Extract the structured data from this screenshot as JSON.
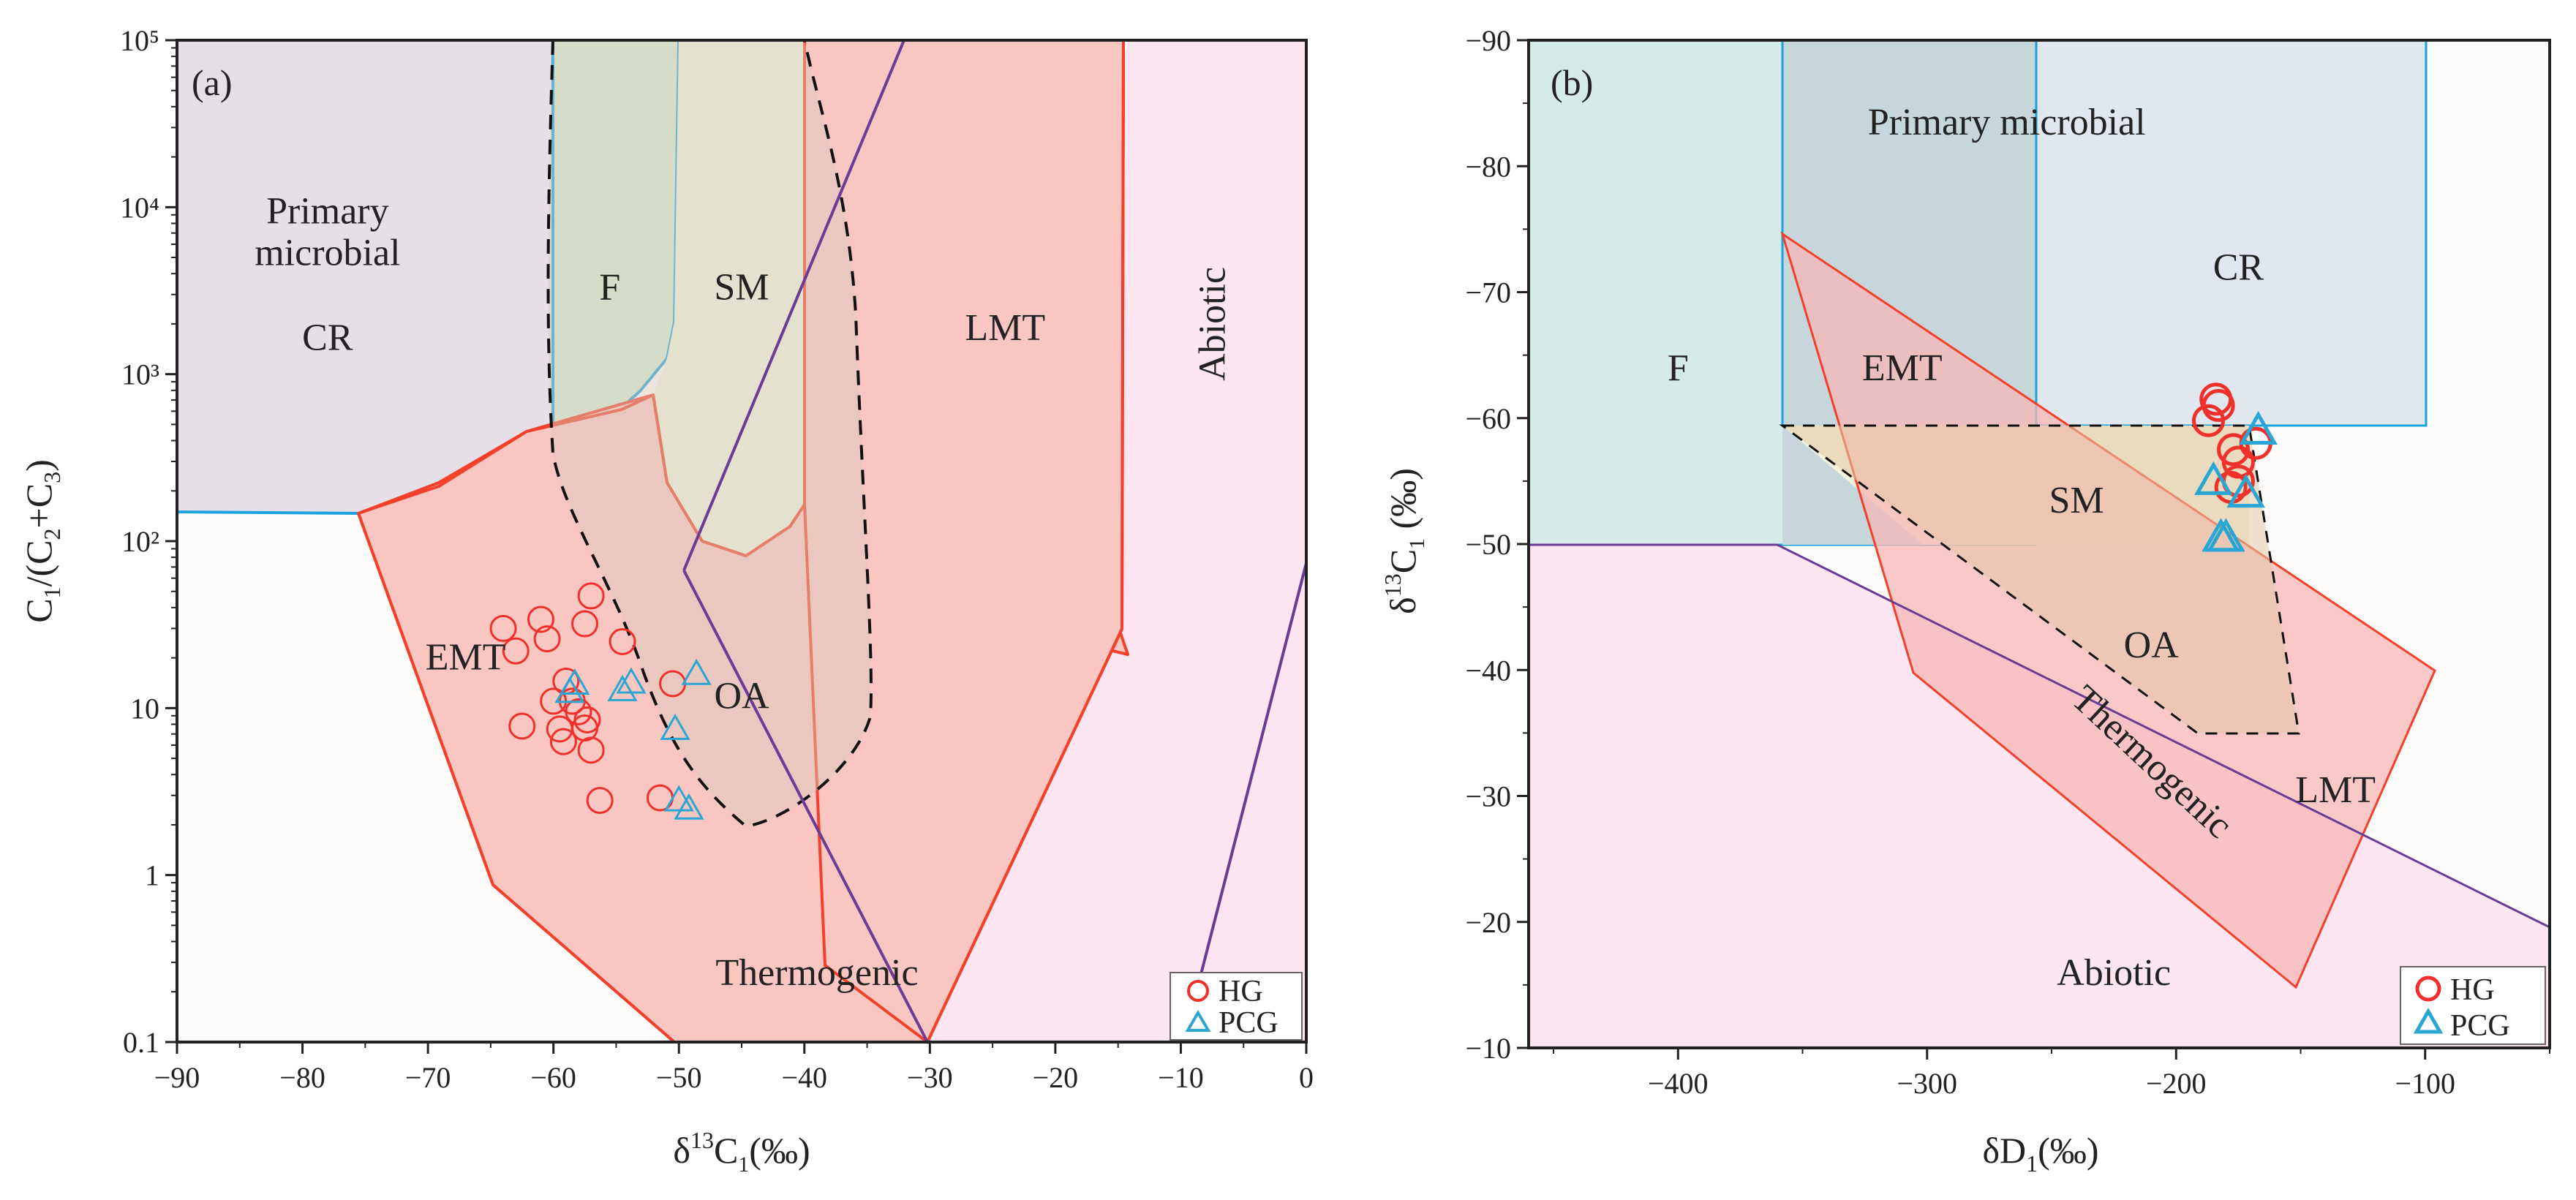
{
  "chart_data": [
    {
      "type": "scatter",
      "panel_label": "(a)",
      "xlabel": "δ13C1(‰)",
      "ylabel": "C1/(C2+C3)",
      "y_scale": "log",
      "xlim": [
        -90,
        0
      ],
      "ylim": [
        0.1,
        100000
      ],
      "x_ticks": [
        -90,
        -80,
        -70,
        -60,
        -50,
        -40,
        -30,
        -20,
        -10,
        0
      ],
      "y_ticks": [
        {
          "value": 0.1,
          "label": "0.1"
        },
        {
          "value": 1,
          "label": "1"
        },
        {
          "value": 10,
          "label": "10"
        },
        {
          "value": 100,
          "label": "10²"
        },
        {
          "value": 1000,
          "label": "10³"
        },
        {
          "value": 10000,
          "label": "10⁴"
        },
        {
          "value": 100000,
          "label": "10⁵"
        }
      ],
      "region_labels": [
        {
          "text": "Primary",
          "x": -78,
          "y": 8000
        },
        {
          "text": "microbial",
          "x": -78,
          "y": 4500
        },
        {
          "text": "CR",
          "x": -78,
          "y": 1400
        },
        {
          "text": "F",
          "x": -55.5,
          "y": 2800
        },
        {
          "text": "SM",
          "x": -45,
          "y": 2800
        },
        {
          "text": "LMT",
          "x": -24,
          "y": 1600
        },
        {
          "text": "EMT",
          "x": -67,
          "y": 17
        },
        {
          "text": "OA",
          "x": -45,
          "y": 10
        },
        {
          "text": "Thermogenic",
          "x": -39,
          "y": 0.22
        },
        {
          "text": "Abiotic",
          "x": -6.5,
          "y": 2000,
          "rotate": -90
        }
      ],
      "series": [
        {
          "name": "HG",
          "marker": "circle",
          "color": "#f0302a",
          "points": [
            [
              -64,
              30
            ],
            [
              -63,
              22
            ],
            [
              -61,
              34
            ],
            [
              -60.5,
              26
            ],
            [
              -57,
              47
            ],
            [
              -57.5,
              32
            ],
            [
              -59,
              14.5
            ],
            [
              -60,
              11
            ],
            [
              -58.5,
              11
            ],
            [
              -58,
              9.5
            ],
            [
              -57.3,
              8.5
            ],
            [
              -57.5,
              7.6
            ],
            [
              -59.5,
              7.5
            ],
            [
              -62.5,
              7.8
            ],
            [
              -59.2,
              6.3
            ],
            [
              -57,
              5.6
            ],
            [
              -54.5,
              25
            ],
            [
              -50.5,
              14
            ],
            [
              -56.3,
              2.8
            ],
            [
              -51.5,
              2.9
            ]
          ]
        },
        {
          "name": "PCG",
          "marker": "triangle",
          "color": "#2aa6d4",
          "points": [
            [
              -58.3,
              14
            ],
            [
              -58.7,
              12.5
            ],
            [
              -54.5,
              12.8
            ],
            [
              -53.8,
              14.2
            ],
            [
              -48.6,
              16
            ],
            [
              -50.3,
              7.5
            ],
            [
              -50,
              2.8
            ],
            [
              -49.2,
              2.5
            ]
          ]
        }
      ],
      "legend": {
        "position": "bottom-right",
        "entries": [
          "HG",
          "PCG"
        ]
      }
    },
    {
      "type": "scatter",
      "panel_label": "(b)",
      "xlabel": "δD1(‰)",
      "ylabel": "δ13C1 (‰)",
      "xlim": [
        -460,
        -50
      ],
      "ylim": [
        -90,
        -10
      ],
      "y_reversed": true,
      "x_ticks": [
        -400,
        -300,
        -200,
        -100
      ],
      "y_ticks": [
        -90,
        -80,
        -70,
        -60,
        -50,
        -40,
        -30,
        -20,
        -10
      ],
      "region_labels": [
        {
          "text": "Primary microbial",
          "x": -268,
          "y": -82.5
        },
        {
          "text": "CR",
          "x": -175,
          "y": -71
        },
        {
          "text": "F",
          "x": -400,
          "y": -63
        },
        {
          "text": "EMT",
          "x": -310,
          "y": -63
        },
        {
          "text": "SM",
          "x": -240,
          "y": -52.5
        },
        {
          "text": "OA",
          "x": -210,
          "y": -41
        },
        {
          "text": "LMT",
          "x": -136,
          "y": -29.5
        },
        {
          "text": "Thermogenic",
          "x": -213,
          "y": -32,
          "rotate": 43
        },
        {
          "text": "Abiotic",
          "x": -225,
          "y": -15
        }
      ],
      "series": [
        {
          "name": "HG",
          "marker": "circle",
          "color": "#f0302a",
          "points": [
            [
              -184,
              -61.5
            ],
            [
              -183,
              -61
            ],
            [
              -187,
              -59.8
            ],
            [
              -168,
              -58
            ],
            [
              -177,
              -57.5
            ],
            [
              -175,
              -56.5
            ],
            [
              -175,
              -55
            ],
            [
              -178,
              -54.5
            ]
          ]
        },
        {
          "name": "PCG",
          "marker": "triangle",
          "color": "#2aa6d4",
          "points": [
            [
              -167,
              -59
            ],
            [
              -185,
              -55
            ],
            [
              -172,
              -54
            ],
            [
              -182,
              -50.5
            ],
            [
              -180,
              -50.5
            ]
          ]
        }
      ],
      "legend": {
        "position": "bottom-right",
        "entries": [
          "HG",
          "PCG"
        ]
      }
    }
  ]
}
